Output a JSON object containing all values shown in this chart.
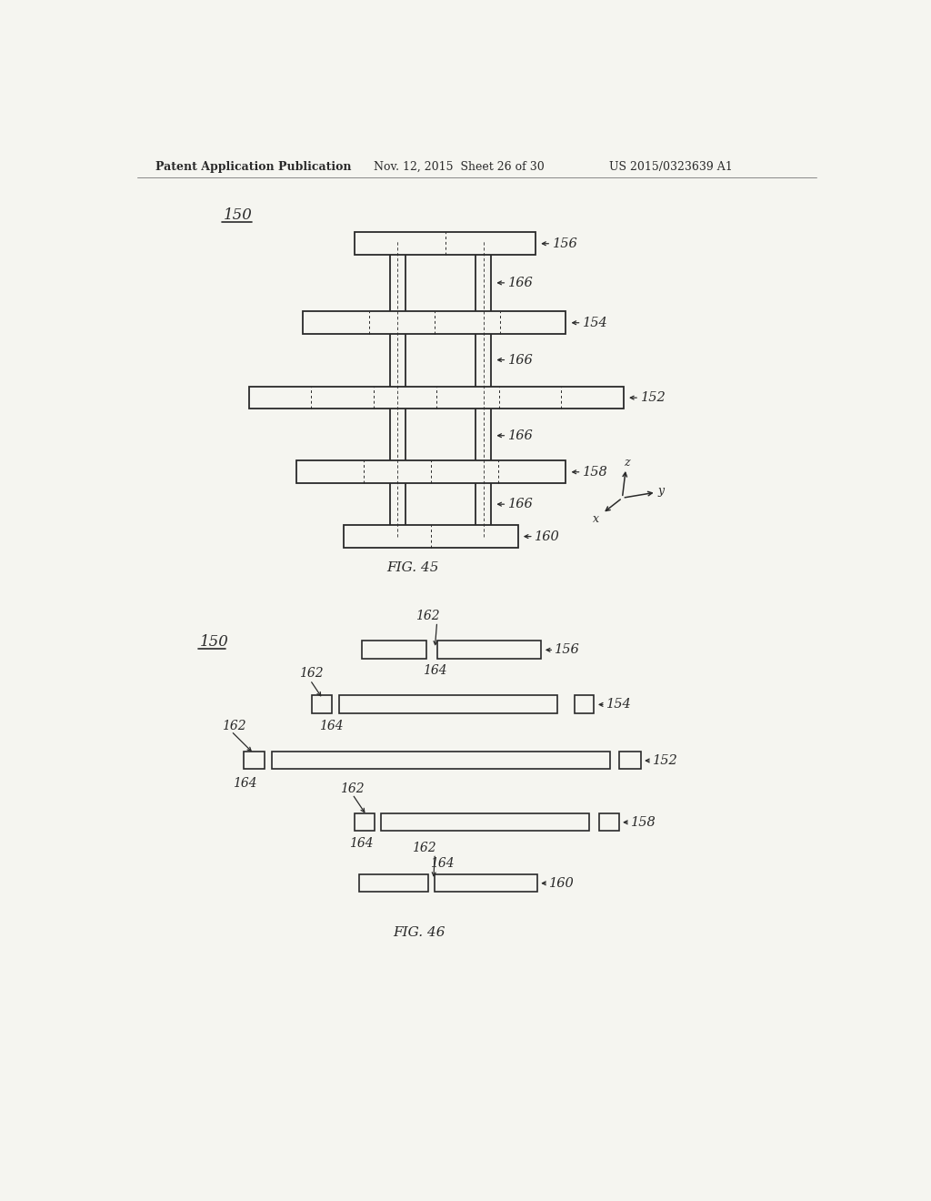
{
  "header_left": "Patent Application Publication",
  "header_mid": "Nov. 12, 2015  Sheet 26 of 30",
  "header_right": "US 2015/0323639 A1",
  "bg_color": "#f5f5f0",
  "line_color": "#2a2a2a",
  "text_color": "#2a2a2a",
  "fig45_label": "FIG. 45",
  "fig46_label": "FIG. 46"
}
